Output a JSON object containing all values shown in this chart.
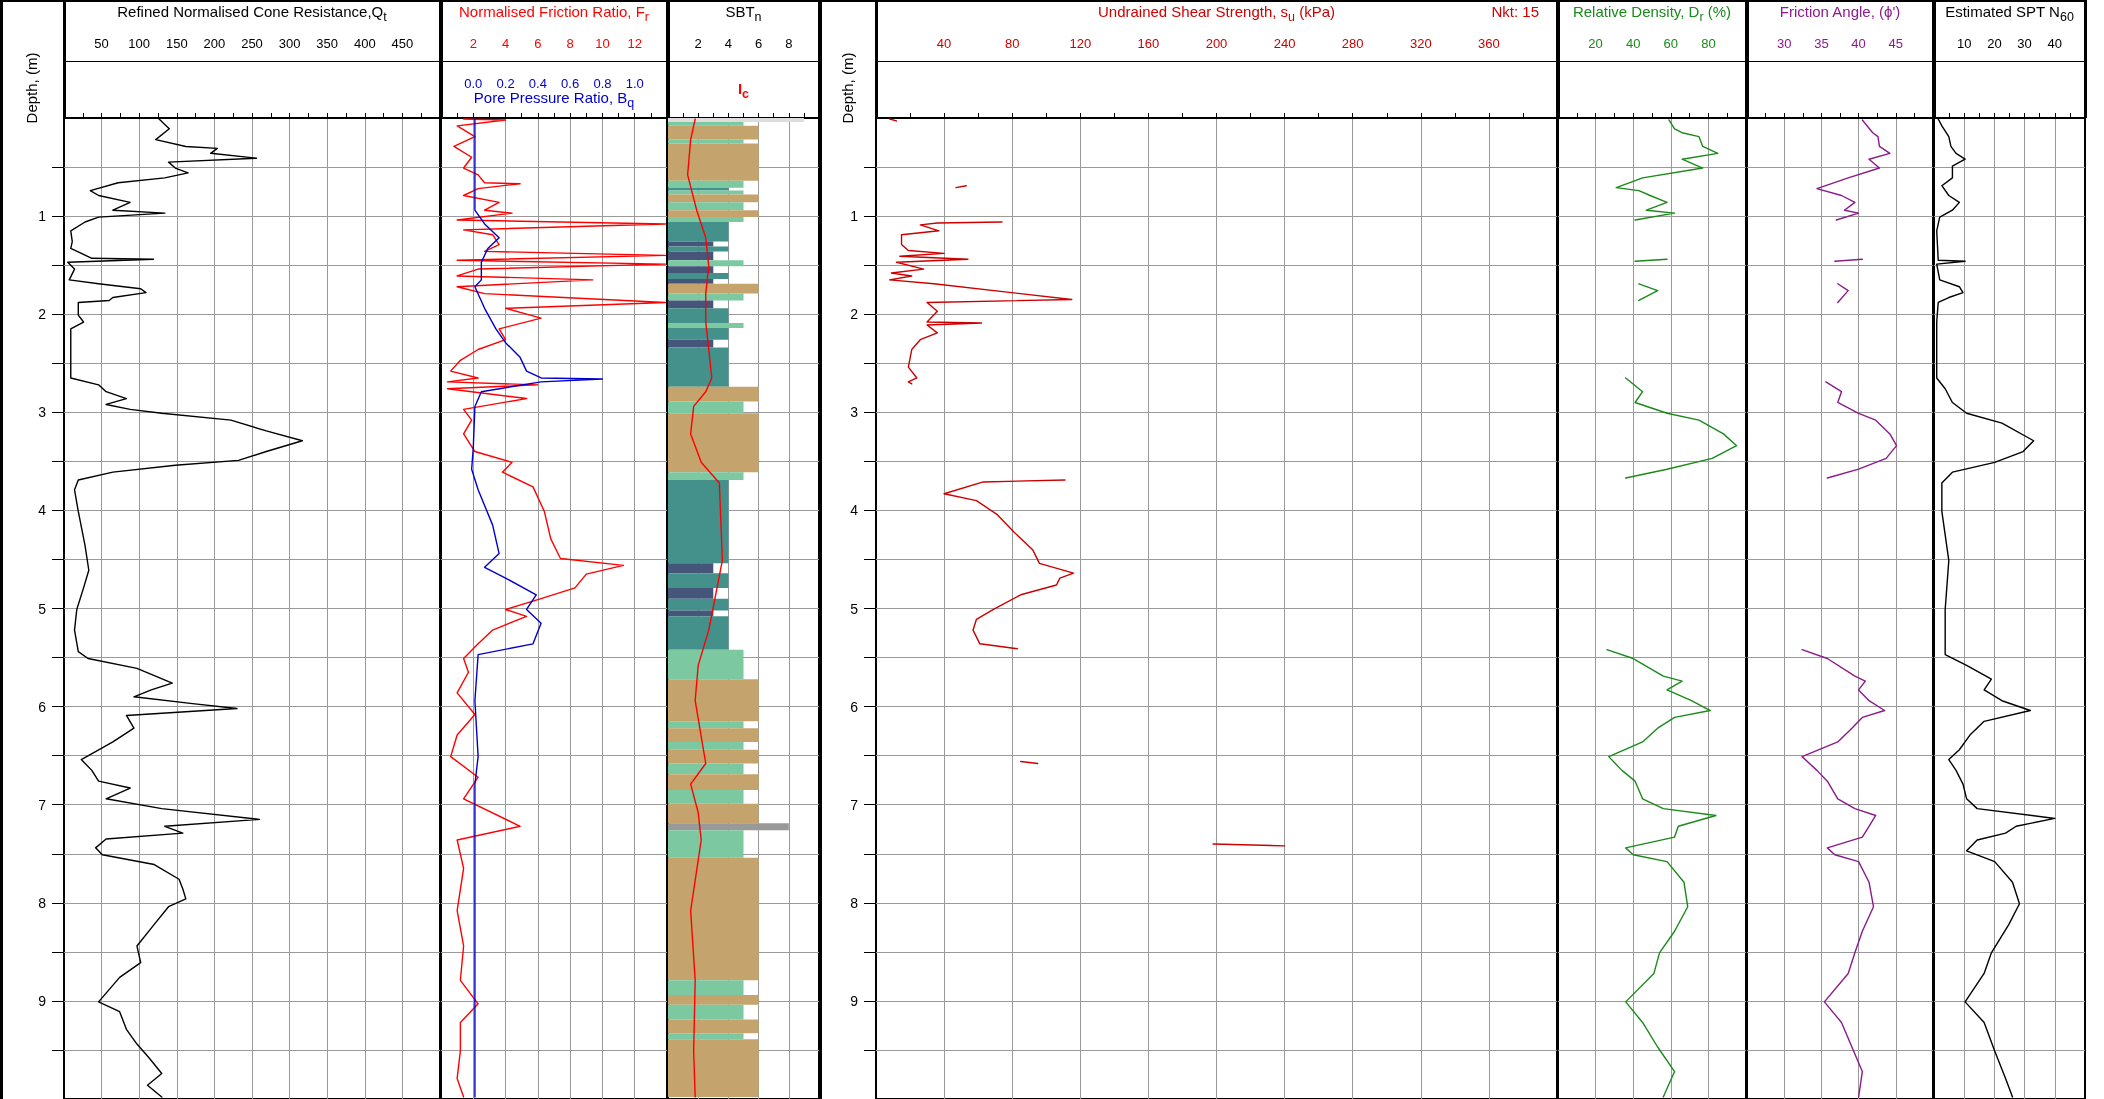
{
  "chart_data": [
    {
      "type": "line",
      "xlabel": "Refined Normalised Cone Resistance,Q$_{t}$",
      "ylabel": "Depth, (m)",
      "xlim": [
        0,
        500
      ],
      "xticks": [
        {
          "value": 25,
          "label": null
        },
        50,
        {
          "value": 75,
          "label": null
        },
        100,
        {
          "value": 125,
          "label": null
        },
        150,
        {
          "value": 175,
          "label": null
        },
        200,
        {
          "value": 225,
          "label": null
        },
        250,
        {
          "value": 275,
          "label": null
        },
        300,
        {
          "value": 325,
          "label": null
        },
        350,
        {
          "value": 375,
          "label": null
        },
        400,
        {
          "value": 425,
          "label": null
        },
        450,
        {
          "value": 475,
          "label": null
        }
      ],
      "ylim": [
        10,
        0
      ],
      "yticks": [
        {
          "value": 0.5,
          "label": null
        },
        1,
        {
          "value": 1.5,
          "label": null
        },
        2,
        {
          "value": 2.5,
          "label": null
        },
        3,
        {
          "value": 3.5,
          "label": null
        },
        4,
        {
          "value": 4.5,
          "label": null
        },
        5,
        {
          "value": 5.5,
          "label": null
        },
        6,
        {
          "value": 6.5,
          "label": null
        },
        7,
        {
          "value": 7.5,
          "label": null
        },
        8,
        {
          "value": 8.5,
          "label": null
        },
        9,
        {
          "value": 9.5,
          "label": null
        }
      ],
      "grid": true,
      "series": [
        {
          "color": "#000000",
          "x": [
            125,
            140,
            122,
            162,
            204,
            195,
            256,
            139,
            148,
            165,
            134,
            72,
            35,
            46,
            88,
            65,
            134,
            46,
            28,
            9,
            11,
            9,
            37,
            119,
            5,
            14,
            7,
            46,
            102,
            109,
            65,
            60,
            19,
            19,
            26,
            9,
            9,
            9,
            46,
            56,
            83,
            56,
            88,
            130,
            222,
            269,
            317,
            269,
            232,
            148,
            65,
            19,
            14,
            19,
            28,
            33,
            26,
            17,
            14,
            19,
            32,
            97,
            144,
            116,
            93,
            171,
            230,
            83,
            93,
            65,
            23,
            37,
            46,
            88,
            56,
            130,
            260,
            134,
            158,
            56,
            42,
            51,
            120,
            153,
            158,
            162,
            139,
            120,
            97,
            102,
            74,
            46,
            74,
            83,
            97,
            113,
            130,
            111,
            130
          ],
          "values": [
            0,
            0.11,
            0.22,
            0.29,
            0.31,
            0.36,
            0.41,
            0.45,
            0.51,
            0.56,
            0.61,
            0.66,
            0.74,
            0.79,
            0.86,
            0.94,
            0.97,
            1.01,
            1.06,
            1.15,
            1.26,
            1.33,
            1.43,
            1.44,
            1.47,
            1.54,
            1.65,
            1.69,
            1.74,
            1.78,
            1.83,
            1.86,
            1.88,
            2.01,
            2.08,
            2.15,
            2.36,
            2.65,
            2.72,
            2.79,
            2.86,
            2.92,
            2.97,
            3.01,
            3.08,
            3.19,
            3.29,
            3.4,
            3.49,
            3.54,
            3.61,
            3.69,
            3.79,
            4.01,
            4.36,
            4.61,
            4.79,
            5.01,
            5.22,
            5.44,
            5.51,
            5.61,
            5.76,
            5.83,
            5.9,
            5.97,
            6.02,
            6.09,
            6.22,
            6.36,
            6.54,
            6.65,
            6.76,
            6.83,
            6.94,
            7.04,
            7.15,
            7.22,
            7.29,
            7.35,
            7.44,
            7.51,
            7.61,
            7.76,
            7.86,
            7.96,
            8.04,
            8.22,
            8.44,
            8.61,
            8.76,
            9.01,
            9.11,
            9.29,
            9.44,
            9.58,
            9.74,
            9.86,
            9.98
          ]
        }
      ]
    },
    {
      "type": "line",
      "xlabel": "Normalised Friction Ratio, F$_{r}$",
      "x2label": "Pore Pressure Ratio, B$_{q}$",
      "xlim": [
        0,
        14
      ],
      "xticks": [
        {
          "value": 1,
          "label": null
        },
        2,
        {
          "value": 3,
          "label": null
        },
        4,
        {
          "value": 5,
          "label": null
        },
        6,
        {
          "value": 7,
          "label": null
        },
        8,
        {
          "value": 9,
          "label": null
        },
        10,
        {
          "value": 11,
          "label": null
        },
        12,
        {
          "value": 13,
          "label": null
        }
      ],
      "x2lim": [
        -0.2,
        1.2
      ],
      "x2ticks": [
        {
          "value": 0,
          "label": "0.0"
        },
        0.2,
        0.4,
        0.6,
        0.8,
        {
          "value": 1,
          "label": "1.0"
        }
      ],
      "ylim": [
        10,
        0
      ],
      "yticks": [
        {
          "value": 0.5,
          "label": null
        },
        1,
        {
          "value": 1.5,
          "label": null
        },
        2,
        {
          "value": 2.5,
          "label": null
        },
        3,
        {
          "value": 3.5,
          "label": null
        },
        4,
        {
          "value": 4.5,
          "label": null
        },
        5,
        {
          "value": 5.5,
          "label": null
        },
        6,
        {
          "value": 6.5,
          "label": null
        },
        7,
        {
          "value": 7.5,
          "label": null
        },
        8,
        {
          "value": 8.5,
          "label": null
        },
        9,
        {
          "value": 9.5,
          "label": null
        }
      ],
      "grid": true,
      "tick_labels": "x",
      "series": [
        {
          "color": "#ff0000",
          "x": [
            1.4,
            4.0,
            1.0,
            2.1,
            0.8,
            1.9,
            1.4,
            2.3,
            2.7,
            4.9,
            2.3,
            1.4,
            3.6,
            2.7,
            4.4,
            1.0,
            13.9,
            1.4,
            3.2,
            3.6,
            2.7,
            13.9,
            1.0,
            13.9,
            2.3,
            1.0,
            9.4,
            1.0,
            2.7,
            13.9,
            4.0,
            6.2,
            3.6,
            4.0,
            2.3,
            1.2,
            0.6,
            2.3,
            0.4,
            6.0,
            0.4,
            5.3,
            1.4,
            1.9,
            1.4,
            2.1,
            4.4,
            3.8,
            5.7,
            6.4,
            6.8,
            7.4,
            11.3,
            9.0,
            8.3,
            6.2,
            4.0,
            5.3,
            3.2,
            2.3,
            1.4,
            1.7,
            1.0,
            2.1,
            1.0,
            0.6,
            2.3,
            1.4,
            4.9,
            1.0,
            1.4,
            1.0,
            1.4,
            1.2,
            2.3,
            1.2,
            1.2,
            1.0,
            1.4
          ],
          "values": [
            0.01,
            0.02,
            0.08,
            0.19,
            0.29,
            0.4,
            0.51,
            0.58,
            0.66,
            0.67,
            0.72,
            0.79,
            0.86,
            0.94,
            0.97,
            1.04,
            1.08,
            1.14,
            1.19,
            1.29,
            1.36,
            1.4,
            1.45,
            1.49,
            1.54,
            1.61,
            1.65,
            1.72,
            1.79,
            1.88,
            1.94,
            2.04,
            2.15,
            2.26,
            2.36,
            2.47,
            2.58,
            2.65,
            2.69,
            2.72,
            2.76,
            2.86,
            2.97,
            3.08,
            3.22,
            3.4,
            3.51,
            3.61,
            3.76,
            4.01,
            4.29,
            4.49,
            4.56,
            4.65,
            4.79,
            4.9,
            5.01,
            5.08,
            5.22,
            5.36,
            5.51,
            5.65,
            5.86,
            6.08,
            6.29,
            6.51,
            6.72,
            6.94,
            7.22,
            7.36,
            7.65,
            8.08,
            8.44,
            8.79,
            9.03,
            9.22,
            9.51,
            9.79,
            9.98
          ]
        },
        {
          "color": "#0000cc",
          "axis": "x2",
          "x": [
            0.01,
            0.01,
            0.01,
            0.07,
            0.16,
            0.09,
            0.05,
            0.05,
            0.01,
            0.07,
            0.14,
            0.2,
            0.29,
            0.33,
            0.42,
            0.8,
            0.42,
            0.05,
            0.01,
            0,
            -0.01,
            0.03,
            0.12,
            0.16,
            0.07,
            0.2,
            0.39,
            0.33,
            0.42,
            0.37,
            0.03,
            0.01,
            0.03,
            0.01,
            0.01,
            0.01
          ],
          "values": [
            0.01,
            0.22,
            0.94,
            1.08,
            1.22,
            1.33,
            1.47,
            1.65,
            1.72,
            1.94,
            2.15,
            2.29,
            2.44,
            2.58,
            2.65,
            2.66,
            2.69,
            2.79,
            2.94,
            3.36,
            3.58,
            3.79,
            4.15,
            4.44,
            4.58,
            4.69,
            4.86,
            5.01,
            5.15,
            5.36,
            5.47,
            5.94,
            6.51,
            6.79,
            7.36,
            9.98
          ]
        }
      ]
    },
    {
      "type": "histogram",
      "orientation": "horizontal",
      "xlabel": "SBT$_{n}$",
      "xlim": [
        0,
        10
      ],
      "xticks": [
        {
          "value": 1,
          "label": null
        },
        2,
        {
          "value": 3,
          "label": null
        },
        4,
        {
          "value": 5,
          "label": null
        },
        6,
        {
          "value": 7,
          "label": null
        },
        8,
        {
          "value": 9,
          "label": null
        }
      ],
      "ylim": [
        10,
        0
      ],
      "yticks": [
        {
          "value": 0.5,
          "label": null
        },
        1,
        {
          "value": 1.5,
          "label": null
        },
        2,
        {
          "value": 2.5,
          "label": null
        },
        3,
        {
          "value": 3.5,
          "label": null
        },
        4,
        {
          "value": 4.5,
          "label": null
        },
        5,
        {
          "value": 5.5,
          "label": null
        },
        6,
        {
          "value": 6.5,
          "label": null
        },
        7,
        {
          "value": 7.5,
          "label": null
        },
        8,
        {
          "value": 8.5,
          "label": null
        },
        9,
        {
          "value": 9.5,
          "label": null
        }
      ],
      "grid": true,
      "tick_labels": "x",
      "series": [
        {
          "bins": [
            0,
            0.04,
            0.08,
            0.22,
            0.26,
            0.64,
            0.71,
            0.74,
            0.78,
            0.86,
            0.94,
            1.01,
            1.06,
            1.26,
            1.31,
            1.36,
            1.45,
            1.51,
            1.58,
            1.64,
            1.69,
            1.79,
            1.86,
            1.94,
            2.09,
            2.14,
            2.26,
            2.34,
            2.74,
            2.89,
            3.01,
            3.61,
            3.69,
            4.54,
            4.64,
            4.79,
            4.9,
            5.02,
            5.08,
            5.42,
            5.72,
            6.15,
            6.22,
            6.36,
            6.44,
            6.58,
            6.69,
            6.85,
            6.99,
            7.19,
            7.26,
            7.54,
            8.79,
            8.94,
            9.04,
            9.19,
            9.33,
            9.39,
            9.98
          ],
          "values": [
            9,
            5,
            6,
            5,
            6,
            5,
            4,
            5,
            6,
            5,
            6,
            5,
            4,
            3,
            4,
            3,
            5,
            3,
            4,
            3,
            6,
            5,
            3,
            4,
            5,
            4,
            3,
            4,
            6,
            5,
            6,
            5,
            4,
            3,
            4,
            3,
            4,
            3,
            4,
            5,
            6,
            5,
            6,
            5,
            6,
            5,
            6,
            5,
            6,
            8,
            5,
            6,
            5,
            6,
            5,
            6,
            5,
            6
          ],
          "colors": [
            "#dddddd",
            "#7cc8a0",
            "#c4a46c",
            "#7cc8a0",
            "#c4a46c",
            "#7cc8a0",
            "#43918a",
            "#7cc8a0",
            "#c4a46c",
            "#7cc8a0",
            "#c4a46c",
            "#7cc8a0",
            "#43918a",
            "#46557a",
            "#43918a",
            "#46557a",
            "#7cc8a0",
            "#46557a",
            "#43918a",
            "#46557a",
            "#c4a46c",
            "#7cc8a0",
            "#46557a",
            "#43918a",
            "#7cc8a0",
            "#43918a",
            "#46557a",
            "#43918a",
            "#c4a46c",
            "#7cc8a0",
            "#c4a46c",
            "#7cc8a0",
            "#43918a",
            "#46557a",
            "#43918a",
            "#46557a",
            "#43918a",
            "#46557a",
            "#43918a",
            "#7cc8a0",
            "#c4a46c",
            "#7cc8a0",
            "#c4a46c",
            "#7cc8a0",
            "#c4a46c",
            "#7cc8a0",
            "#c4a46c",
            "#7cc8a0",
            "#c4a46c",
            "#999999",
            "#7cc8a0",
            "#c4a46c",
            "#7cc8a0",
            "#c4a46c",
            "#7cc8a0",
            "#c4a46c",
            "#7cc8a0",
            "#c4a46c"
          ]
        },
        {
          "type": "line",
          "name": "I$_{c}$",
          "color": "#ff0000",
          "x": [
            0.01,
            0.22,
            0.58,
            0.94,
            1.08,
            1.22,
            1.51,
            1.79,
            2.08,
            2.36,
            2.65,
            2.79,
            2.94,
            3.22,
            3.51,
            3.72,
            4.51,
            5.22,
            5.58,
            5.94,
            6.58,
            6.79,
            7.08,
            7.36,
            8.08,
            8.79,
            9.51,
            9.98
          ],
          "values": [
            1.8,
            1.5,
            1.3,
            1.9,
            2.2,
            2.5,
            2.7,
            2.5,
            2.5,
            2.7,
            2.9,
            2.5,
            1.7,
            1.5,
            2.2,
            3.4,
            3.6,
            2.7,
            2.0,
            1.8,
            2.5,
            1.5,
            2.0,
            2.2,
            1.5,
            1.8,
            1.7,
            1.8
          ]
        }
      ]
    },
    {
      "type": "line",
      "xlabel": "Undrained Shear Strength, s$_{u}$ (kPa)",
      "ylabel": "Depth, (m)",
      "annotations": [
        "Nkt: 15"
      ],
      "xlim": [
        0,
        400
      ],
      "xticks": [
        {
          "value": 20,
          "label": null
        },
        40,
        {
          "value": 60,
          "label": null
        },
        80,
        {
          "value": 100,
          "label": null
        },
        120,
        {
          "value": 140,
          "label": null
        },
        160,
        {
          "value": 180,
          "label": null
        },
        200,
        {
          "value": 220,
          "label": null
        },
        240,
        {
          "value": 260,
          "label": null
        },
        280,
        {
          "value": 300,
          "label": null
        },
        320,
        {
          "value": 340,
          "label": null
        },
        360,
        {
          "value": 380,
          "label": null
        }
      ],
      "ylim": [
        10,
        0
      ],
      "yticks": [
        {
          "value": 0.5,
          "label": null
        },
        1,
        {
          "value": 1.5,
          "label": null
        },
        2,
        {
          "value": 2.5,
          "label": null
        },
        3,
        {
          "value": 3.5,
          "label": null
        },
        4,
        {
          "value": 4.5,
          "label": null
        },
        5,
        {
          "value": 5.5,
          "label": null
        },
        6,
        {
          "value": 6.5,
          "label": null
        },
        7,
        {
          "value": 7.5,
          "label": null
        },
        8,
        {
          "value": 8.5,
          "label": null
        },
        9,
        {
          "value": 9.5,
          "label": null
        }
      ],
      "grid": true,
      "series": [
        {
          "color": "#cc0000",
          "x": [
            8,
            12,
            null,
            53,
            47,
            null,
            74,
            36,
            26,
            37,
            15,
            15,
            19,
            40,
            14,
            54,
            12,
            28,
            9,
            21,
            8,
            34,
            115,
            30,
            36,
            30,
            62,
            30,
            36,
            26,
            21,
            19,
            24,
            19,
            21,
            null,
            111,
            63,
            40,
            59,
            71,
            81,
            92,
            96,
            116,
            108,
            106,
            85,
            69,
            59,
            57,
            61,
            83,
            null,
            85,
            95,
            null,
            198,
            240
          ],
          "values": [
            0.01,
            0.03,
            null,
            0.69,
            0.71,
            null,
            1.06,
            1.07,
            1.09,
            1.15,
            1.19,
            1.29,
            1.35,
            1.38,
            1.41,
            1.44,
            1.47,
            1.54,
            1.58,
            1.61,
            1.65,
            1.69,
            1.85,
            1.88,
            1.97,
            2.08,
            2.09,
            2.11,
            2.19,
            2.26,
            2.36,
            2.54,
            2.65,
            2.69,
            2.71,
            null,
            3.69,
            3.71,
            3.83,
            3.9,
            4.04,
            4.22,
            4.4,
            4.54,
            4.64,
            4.69,
            4.76,
            4.86,
            5.01,
            5.11,
            5.22,
            5.36,
            5.41,
            null,
            6.56,
            6.58,
            null,
            7.4,
            7.42
          ]
        }
      ]
    },
    {
      "type": "line",
      "xlabel": "Relative Density, D$_{r}$ (%)",
      "xlim": [
        0,
        100
      ],
      "xticks": [
        {
          "value": 10,
          "label": null
        },
        20,
        {
          "value": 30,
          "label": null
        },
        40,
        {
          "value": 50,
          "label": null
        },
        60,
        {
          "value": 70,
          "label": null
        },
        80,
        {
          "value": 90,
          "label": null
        }
      ],
      "ylim": [
        10,
        0
      ],
      "yticks": [
        {
          "value": 0.5,
          "label": null
        },
        1,
        {
          "value": 1.5,
          "label": null
        },
        2,
        {
          "value": 2.5,
          "label": null
        },
        3,
        {
          "value": 3.5,
          "label": null
        },
        4,
        {
          "value": 4.5,
          "label": null
        },
        5,
        {
          "value": 5.5,
          "label": null
        },
        6,
        {
          "value": 6.5,
          "label": null
        },
        7,
        {
          "value": 7.5,
          "label": null
        },
        8,
        {
          "value": 8.5,
          "label": null
        },
        9,
        {
          "value": 9.5,
          "label": null
        }
      ],
      "grid": true,
      "tick_labels": "x",
      "series": [
        {
          "color": "#1a8a1a",
          "x": [
            59,
            62,
            66,
            75,
            77,
            85,
            66,
            77,
            45,
            31,
            43,
            49,
            58,
            47,
            62,
            41,
            null,
            58,
            41,
            null,
            43,
            53,
            43,
            null,
            36,
            45,
            41,
            58,
            75,
            88,
            95,
            82,
            58,
            36,
            null,
            26,
            40,
            56,
            66,
            58,
            71,
            81,
            62,
            53,
            45,
            27,
            34,
            41,
            45,
            56,
            84,
            64,
            62,
            36,
            40,
            58,
            67,
            69,
            62,
            54,
            51,
            36,
            45,
            53,
            62,
            56
          ],
          "values": [
            0.02,
            0.11,
            0.15,
            0.19,
            0.29,
            0.36,
            0.42,
            0.51,
            0.61,
            0.71,
            0.74,
            0.79,
            0.86,
            0.94,
            0.97,
            1.04,
            null,
            1.44,
            1.46,
            null,
            1.69,
            1.76,
            1.86,
            null,
            2.65,
            2.79,
            2.9,
            3.01,
            3.08,
            3.22,
            3.34,
            3.47,
            3.58,
            3.67,
            null,
            5.42,
            5.51,
            5.69,
            5.74,
            5.83,
            5.94,
            6.04,
            6.11,
            6.22,
            6.36,
            6.51,
            6.65,
            6.76,
            6.94,
            7.04,
            7.11,
            7.22,
            7.33,
            7.44,
            7.51,
            7.58,
            7.79,
            8.04,
            8.29,
            8.51,
            8.72,
            9.01,
            9.22,
            9.47,
            9.72,
            9.98
          ]
        }
      ]
    },
    {
      "type": "line",
      "xlabel": "Friction Angle, (ϕ')",
      "xlim": [
        25,
        50
      ],
      "xticks": [
        {
          "value": 27.5,
          "label": null
        },
        30,
        {
          "value": 32.5,
          "label": null
        },
        35,
        {
          "value": 37.5,
          "label": null
        },
        40,
        {
          "value": 42.5,
          "label": null
        },
        45,
        {
          "value": 47.5,
          "label": null
        }
      ],
      "ylim": [
        10,
        0
      ],
      "yticks": [
        {
          "value": 0.5,
          "label": null
        },
        1,
        {
          "value": 1.5,
          "label": null
        },
        2,
        {
          "value": 2.5,
          "label": null
        },
        3,
        {
          "value": 3.5,
          "label": null
        },
        4,
        {
          "value": 4.5,
          "label": null
        },
        5,
        {
          "value": 5.5,
          "label": null
        },
        6,
        {
          "value": 6.5,
          "label": null
        },
        7,
        {
          "value": 7.5,
          "label": null
        },
        8,
        {
          "value": 8.5,
          "label": null
        },
        9,
        {
          "value": 9.5,
          "label": null
        }
      ],
      "grid": true,
      "tick_labels": "x",
      "series": [
        {
          "color": "#8b1a8b",
          "x": [
            40.5,
            41.9,
            42.6,
            42.8,
            44.2,
            41.4,
            42.8,
            38.6,
            34.4,
            37.7,
            39.5,
            38.1,
            40.0,
            37.0,
            null,
            40.5,
            36.8,
            null,
            37.2,
            38.6,
            37.2,
            null,
            35.6,
            37.7,
            37.2,
            40.0,
            42.3,
            44.2,
            45.1,
            43.7,
            40.0,
            35.8,
            null,
            32.4,
            35.8,
            39.5,
            40.9,
            40.0,
            41.4,
            43.5,
            40.5,
            39.1,
            37.2,
            32.4,
            34.4,
            35.8,
            37.2,
            39.5,
            42.3,
            41.4,
            40.5,
            35.8,
            36.8,
            40.0,
            41.4,
            42.0,
            40.5,
            39.5,
            38.6,
            35.4,
            37.7,
            39.1,
            40.5,
            40.0
          ],
          "values": [
            0.02,
            0.15,
            0.19,
            0.29,
            0.36,
            0.42,
            0.51,
            0.61,
            0.72,
            0.79,
            0.86,
            0.94,
            0.97,
            1.04,
            null,
            1.44,
            1.46,
            null,
            1.69,
            1.76,
            1.88,
            null,
            2.69,
            2.79,
            2.9,
            3.01,
            3.08,
            3.22,
            3.34,
            3.47,
            3.58,
            3.67,
            null,
            5.42,
            5.51,
            5.69,
            5.74,
            5.83,
            5.94,
            6.04,
            6.11,
            6.22,
            6.36,
            6.51,
            6.65,
            6.76,
            6.94,
            7.04,
            7.11,
            7.22,
            7.33,
            7.44,
            7.51,
            7.58,
            7.79,
            8.04,
            8.29,
            8.51,
            8.72,
            9.01,
            9.22,
            9.47,
            9.72,
            9.98
          ]
        }
      ]
    },
    {
      "type": "line",
      "xlabel": "Estimated SPT N$_{60}$",
      "xlim": [
        0,
        50
      ],
      "xticks": [
        {
          "value": 5,
          "label": null
        },
        10,
        {
          "value": 15,
          "label": null
        },
        20,
        {
          "value": 25,
          "label": null
        },
        30,
        {
          "value": 35,
          "label": null
        },
        40,
        {
          "value": 45,
          "label": null
        }
      ],
      "ylim": [
        10,
        0
      ],
      "yticks": [
        {
          "value": 0.5,
          "label": null
        },
        1,
        {
          "value": 1.5,
          "label": null
        },
        2,
        {
          "value": 2.5,
          "label": null
        },
        3,
        {
          "value": 3.5,
          "label": null
        },
        4,
        {
          "value": 4.5,
          "label": null
        },
        5,
        {
          "value": 5.5,
          "label": null
        },
        6,
        {
          "value": 6.5,
          "label": null
        },
        7,
        {
          "value": 7.5,
          "label": null
        },
        8,
        {
          "value": 8.5,
          "label": null
        },
        9,
        {
          "value": 9.5,
          "label": null
        }
      ],
      "grid": true,
      "tick_labels": "x",
      "series": [
        {
          "color": "#000000",
          "x": [
            1.4,
            2.6,
            4.9,
            5.6,
            7.3,
            10.3,
            6.1,
            6.1,
            2.6,
            4.9,
            8.4,
            6.1,
            1.9,
            0.9,
            1.4,
            10.3,
            0.9,
            1.9,
            8.4,
            9.6,
            4.9,
            1.4,
            0.9,
            0.9,
            3.7,
            6.1,
            10.8,
            22.5,
            33.0,
            29.5,
            20.1,
            6.1,
            2.6,
            2.6,
            4.9,
            3.7,
            3.7,
            10.8,
            19.0,
            16.6,
            22.5,
            31.9,
            16.6,
            11.9,
            8.4,
            4.9,
            7.3,
            9.6,
            10.8,
            14.3,
            40.0,
            27.2,
            23.7,
            14.3,
            10.8,
            20.1,
            26.0,
            28.3,
            24.8,
            19.0,
            16.6,
            10.3,
            16.6,
            20.1,
            23.7,
            26.0
          ],
          "values": [
            0.01,
            0.08,
            0.19,
            0.29,
            0.36,
            0.42,
            0.49,
            0.61,
            0.69,
            0.79,
            0.86,
            0.94,
            1.01,
            1.15,
            1.45,
            1.46,
            1.49,
            1.65,
            1.72,
            1.78,
            1.83,
            1.88,
            2.08,
            2.65,
            2.76,
            2.9,
            3.01,
            3.11,
            3.29,
            3.4,
            3.51,
            3.61,
            3.72,
            4.01,
            4.51,
            5.01,
            5.47,
            5.58,
            5.72,
            5.83,
            5.94,
            6.04,
            6.15,
            6.29,
            6.44,
            6.54,
            6.65,
            6.79,
            6.94,
            7.04,
            7.14,
            7.22,
            7.29,
            7.36,
            7.47,
            7.58,
            7.79,
            8.01,
            8.22,
            8.51,
            8.72,
            9.01,
            9.22,
            9.51,
            9.79,
            9.98
          ]
        }
      ]
    }
  ]
}
